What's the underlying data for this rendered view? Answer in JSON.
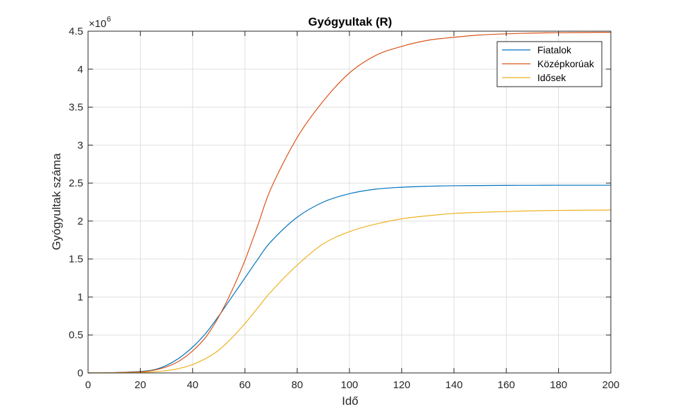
{
  "chart_data": {
    "type": "line",
    "title": "Gyógyultak (R)",
    "xlabel": "Idő",
    "ylabel": "Gyógyultak száma",
    "xlim": [
      0,
      200
    ],
    "ylim": [
      0,
      4500000
    ],
    "y_exponent_base": "×10",
    "y_exponent_power": "6",
    "grid": true,
    "legend_position": "top-right",
    "x_ticks": [
      0,
      20,
      40,
      60,
      80,
      100,
      120,
      140,
      160,
      180,
      200
    ],
    "x_tick_labels": [
      "0",
      "20",
      "40",
      "60",
      "80",
      "100",
      "120",
      "140",
      "160",
      "180",
      "200"
    ],
    "y_ticks": [
      0,
      500000,
      1000000,
      1500000,
      2000000,
      2500000,
      3000000,
      3500000,
      4000000,
      4500000
    ],
    "y_tick_labels": [
      "0",
      "0.5",
      "1",
      "1.5",
      "2",
      "2.5",
      "3",
      "3.5",
      "4",
      "4.5"
    ],
    "x": [
      0,
      10,
      20,
      25,
      30,
      35,
      40,
      45,
      50,
      55,
      60,
      65,
      70,
      80,
      90,
      100,
      110,
      120,
      130,
      140,
      150,
      160,
      170,
      180,
      190,
      200
    ],
    "series": [
      {
        "name": "Fiatalok",
        "color": "#0072BD",
        "values": [
          0,
          5000,
          20000,
          40000,
          100000,
          200000,
          340000,
          520000,
          750000,
          1000000,
          1250000,
          1500000,
          1730000,
          2050000,
          2250000,
          2360000,
          2420000,
          2445000,
          2458000,
          2465000,
          2468000,
          2470000,
          2471000,
          2472000,
          2472000,
          2472000
        ]
      },
      {
        "name": "Középkorúak",
        "color": "#D95319",
        "values": [
          0,
          4000,
          15000,
          35000,
          80000,
          160000,
          290000,
          470000,
          740000,
          1080000,
          1480000,
          1950000,
          2430000,
          3100000,
          3580000,
          3950000,
          4180000,
          4300000,
          4380000,
          4420000,
          4450000,
          4465000,
          4475000,
          4480000,
          4483000,
          4485000
        ]
      },
      {
        "name": "Idősek",
        "color": "#EDB120",
        "values": [
          0,
          2000,
          6000,
          15000,
          30000,
          60000,
          110000,
          190000,
          300000,
          460000,
          650000,
          860000,
          1070000,
          1420000,
          1700000,
          1860000,
          1960000,
          2030000,
          2070000,
          2100000,
          2115000,
          2125000,
          2135000,
          2140000,
          2143000,
          2145000
        ]
      }
    ]
  }
}
